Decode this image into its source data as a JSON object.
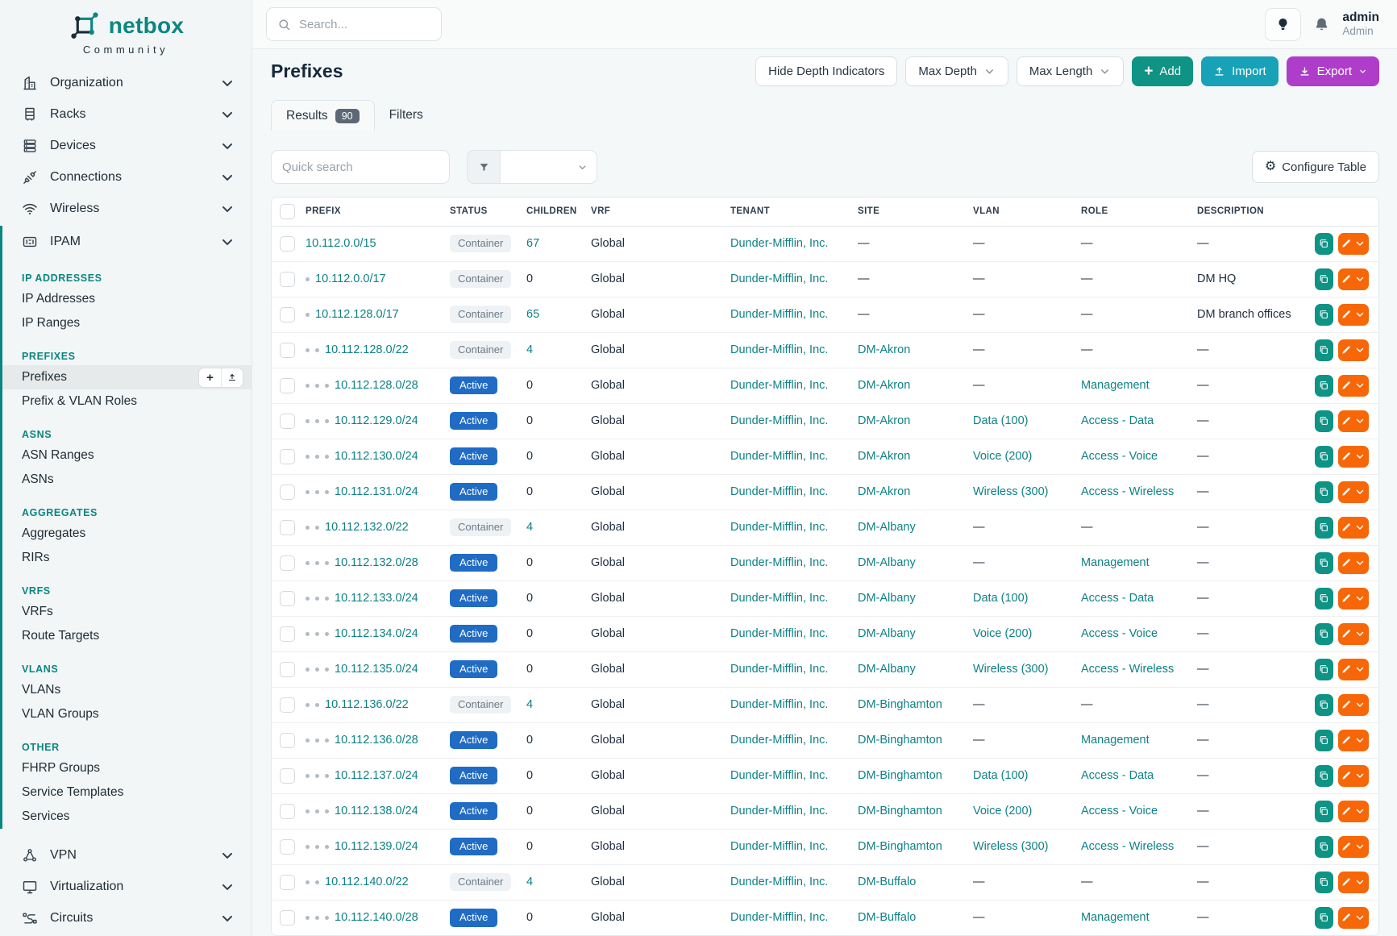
{
  "colors": {
    "teal": "#0e8185",
    "brand": "#0b8680",
    "blue": "#206bc4",
    "cyan": "#17a2b8",
    "purple": "#ae3ec9",
    "orange": "#f76707",
    "add_green": "#0e9384",
    "dark": "#1f2d3d"
  },
  "brand": {
    "name": "netbox",
    "subtitle": "Community"
  },
  "topbar": {
    "search_placeholder": "Search...",
    "user_name": "admin",
    "user_role": "Admin"
  },
  "sidebar": {
    "top_items": [
      {
        "label": "Organization",
        "icon": "building-icon"
      },
      {
        "label": "Racks",
        "icon": "rack-icon"
      },
      {
        "label": "Devices",
        "icon": "server-icon"
      },
      {
        "label": "Connections",
        "icon": "plug-icon"
      },
      {
        "label": "Wireless",
        "icon": "wifi-icon"
      }
    ],
    "ipam": {
      "label": "IPAM",
      "icon": "ipam-icon",
      "active": true
    },
    "sections": [
      {
        "title": "IP ADDRESSES",
        "links": [
          {
            "label": "IP Addresses"
          },
          {
            "label": "IP Ranges"
          }
        ]
      },
      {
        "title": "PREFIXES",
        "links": [
          {
            "label": "Prefixes",
            "active": true
          },
          {
            "label": "Prefix & VLAN Roles"
          }
        ]
      },
      {
        "title": "ASNS",
        "links": [
          {
            "label": "ASN Ranges"
          },
          {
            "label": "ASNs"
          }
        ]
      },
      {
        "title": "AGGREGATES",
        "links": [
          {
            "label": "Aggregates"
          },
          {
            "label": "RIRs"
          }
        ]
      },
      {
        "title": "VRFS",
        "links": [
          {
            "label": "VRFs"
          },
          {
            "label": "Route Targets"
          }
        ]
      },
      {
        "title": "VLANS",
        "links": [
          {
            "label": "VLANs"
          },
          {
            "label": "VLAN Groups"
          }
        ]
      },
      {
        "title": "OTHER",
        "links": [
          {
            "label": "FHRP Groups"
          },
          {
            "label": "Service Templates"
          },
          {
            "label": "Services"
          }
        ]
      }
    ],
    "bottom_items": [
      {
        "label": "VPN",
        "icon": "vpn-icon"
      },
      {
        "label": "Virtualization",
        "icon": "virtualization-icon"
      },
      {
        "label": "Circuits",
        "icon": "circuits-icon"
      }
    ]
  },
  "page": {
    "title": "Prefixes",
    "buttons": {
      "hide_depth": "Hide Depth Indicators",
      "max_depth": "Max Depth",
      "max_length": "Max Length",
      "add": "Add",
      "import": "Import",
      "export": "Export"
    },
    "tabs": {
      "results": "Results",
      "results_count": "90",
      "filters": "Filters"
    },
    "quick_search_placeholder": "Quick search",
    "configure_table": "Configure Table"
  },
  "table": {
    "columns": [
      "PREFIX",
      "STATUS",
      "CHILDREN",
      "VRF",
      "TENANT",
      "SITE",
      "VLAN",
      "ROLE",
      "DESCRIPTION"
    ],
    "rows": [
      {
        "depth": 0,
        "prefix": "10.112.0.0/15",
        "status": "Container",
        "children": "67",
        "vrf": "Global",
        "tenant": "Dunder-Mifflin, Inc.",
        "site": "—",
        "vlan": "—",
        "role": "—",
        "description": "—"
      },
      {
        "depth": 1,
        "prefix": "10.112.0.0/17",
        "status": "Container",
        "children": "0",
        "vrf": "Global",
        "tenant": "Dunder-Mifflin, Inc.",
        "site": "—",
        "vlan": "—",
        "role": "—",
        "description": "DM HQ"
      },
      {
        "depth": 1,
        "prefix": "10.112.128.0/17",
        "status": "Container",
        "children": "65",
        "vrf": "Global",
        "tenant": "Dunder-Mifflin, Inc.",
        "site": "—",
        "vlan": "—",
        "role": "—",
        "description": "DM branch offices"
      },
      {
        "depth": 2,
        "prefix": "10.112.128.0/22",
        "status": "Container",
        "children": "4",
        "vrf": "Global",
        "tenant": "Dunder-Mifflin, Inc.",
        "site": "DM-Akron",
        "vlan": "—",
        "role": "—",
        "description": "—"
      },
      {
        "depth": 3,
        "prefix": "10.112.128.0/28",
        "status": "Active",
        "children": "0",
        "vrf": "Global",
        "tenant": "Dunder-Mifflin, Inc.",
        "site": "DM-Akron",
        "vlan": "—",
        "role": "Management",
        "description": "—"
      },
      {
        "depth": 3,
        "prefix": "10.112.129.0/24",
        "status": "Active",
        "children": "0",
        "vrf": "Global",
        "tenant": "Dunder-Mifflin, Inc.",
        "site": "DM-Akron",
        "vlan": "Data (100)",
        "role": "Access - Data",
        "description": "—"
      },
      {
        "depth": 3,
        "prefix": "10.112.130.0/24",
        "status": "Active",
        "children": "0",
        "vrf": "Global",
        "tenant": "Dunder-Mifflin, Inc.",
        "site": "DM-Akron",
        "vlan": "Voice (200)",
        "role": "Access - Voice",
        "description": "—"
      },
      {
        "depth": 3,
        "prefix": "10.112.131.0/24",
        "status": "Active",
        "children": "0",
        "vrf": "Global",
        "tenant": "Dunder-Mifflin, Inc.",
        "site": "DM-Akron",
        "vlan": "Wireless (300)",
        "role": "Access - Wireless",
        "description": "—"
      },
      {
        "depth": 2,
        "prefix": "10.112.132.0/22",
        "status": "Container",
        "children": "4",
        "vrf": "Global",
        "tenant": "Dunder-Mifflin, Inc.",
        "site": "DM-Albany",
        "vlan": "—",
        "role": "—",
        "description": "—"
      },
      {
        "depth": 3,
        "prefix": "10.112.132.0/28",
        "status": "Active",
        "children": "0",
        "vrf": "Global",
        "tenant": "Dunder-Mifflin, Inc.",
        "site": "DM-Albany",
        "vlan": "—",
        "role": "Management",
        "description": "—"
      },
      {
        "depth": 3,
        "prefix": "10.112.133.0/24",
        "status": "Active",
        "children": "0",
        "vrf": "Global",
        "tenant": "Dunder-Mifflin, Inc.",
        "site": "DM-Albany",
        "vlan": "Data (100)",
        "role": "Access - Data",
        "description": "—"
      },
      {
        "depth": 3,
        "prefix": "10.112.134.0/24",
        "status": "Active",
        "children": "0",
        "vrf": "Global",
        "tenant": "Dunder-Mifflin, Inc.",
        "site": "DM-Albany",
        "vlan": "Voice (200)",
        "role": "Access - Voice",
        "description": "—"
      },
      {
        "depth": 3,
        "prefix": "10.112.135.0/24",
        "status": "Active",
        "children": "0",
        "vrf": "Global",
        "tenant": "Dunder-Mifflin, Inc.",
        "site": "DM-Albany",
        "vlan": "Wireless (300)",
        "role": "Access - Wireless",
        "description": "—"
      },
      {
        "depth": 2,
        "prefix": "10.112.136.0/22",
        "status": "Container",
        "children": "4",
        "vrf": "Global",
        "tenant": "Dunder-Mifflin, Inc.",
        "site": "DM-Binghamton",
        "vlan": "—",
        "role": "—",
        "description": "—"
      },
      {
        "depth": 3,
        "prefix": "10.112.136.0/28",
        "status": "Active",
        "children": "0",
        "vrf": "Global",
        "tenant": "Dunder-Mifflin, Inc.",
        "site": "DM-Binghamton",
        "vlan": "—",
        "role": "Management",
        "description": "—"
      },
      {
        "depth": 3,
        "prefix": "10.112.137.0/24",
        "status": "Active",
        "children": "0",
        "vrf": "Global",
        "tenant": "Dunder-Mifflin, Inc.",
        "site": "DM-Binghamton",
        "vlan": "Data (100)",
        "role": "Access - Data",
        "description": "—"
      },
      {
        "depth": 3,
        "prefix": "10.112.138.0/24",
        "status": "Active",
        "children": "0",
        "vrf": "Global",
        "tenant": "Dunder-Mifflin, Inc.",
        "site": "DM-Binghamton",
        "vlan": "Voice (200)",
        "role": "Access - Voice",
        "description": "—"
      },
      {
        "depth": 3,
        "prefix": "10.112.139.0/24",
        "status": "Active",
        "children": "0",
        "vrf": "Global",
        "tenant": "Dunder-Mifflin, Inc.",
        "site": "DM-Binghamton",
        "vlan": "Wireless (300)",
        "role": "Access - Wireless",
        "description": "—"
      },
      {
        "depth": 2,
        "prefix": "10.112.140.0/22",
        "status": "Container",
        "children": "4",
        "vrf": "Global",
        "tenant": "Dunder-Mifflin, Inc.",
        "site": "DM-Buffalo",
        "vlan": "—",
        "role": "—",
        "description": "—"
      },
      {
        "depth": 3,
        "prefix": "10.112.140.0/28",
        "status": "Active",
        "children": "0",
        "vrf": "Global",
        "tenant": "Dunder-Mifflin, Inc.",
        "site": "DM-Buffalo",
        "vlan": "—",
        "role": "Management",
        "description": "—"
      }
    ]
  }
}
